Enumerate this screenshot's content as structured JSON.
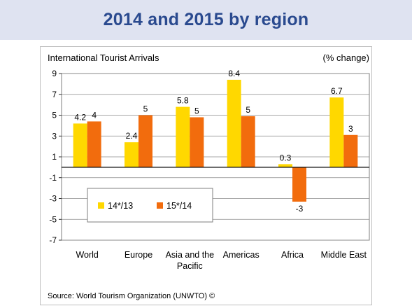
{
  "slide": {
    "title": "2014 and 2015 by region"
  },
  "chart_data": {
    "type": "bar",
    "title": "International Tourist Arrivals",
    "unit_note": "(% change)",
    "source": "Source: World Tourism Organization (UNWTO) ©",
    "categories": [
      "World",
      "Europe",
      "Asia and the Pacific",
      "Americas",
      "Africa",
      "Middle East"
    ],
    "category_lines": [
      [
        "World"
      ],
      [
        "Europe"
      ],
      [
        "Asia and the",
        "Pacific"
      ],
      [
        "Americas"
      ],
      [
        "Africa"
      ],
      [
        "Middle East"
      ]
    ],
    "series": [
      {
        "name": "14*/13",
        "color": "#ffd800",
        "values": [
          4.2,
          2.4,
          5.8,
          8.4,
          0.3,
          6.7
        ],
        "labels": [
          "4.2",
          "2.4",
          "5.8",
          "8.4",
          "0.3",
          "6.7"
        ]
      },
      {
        "name": "15*/14",
        "color": "#f26c0d",
        "values": [
          4.4,
          5.0,
          4.8,
          4.9,
          -3.3,
          3.1
        ],
        "labels": [
          "4",
          "5",
          "5",
          "5",
          "-3",
          "3"
        ]
      }
    ],
    "ylim": [
      -7,
      9
    ],
    "yticks": [
      9,
      7,
      5,
      3,
      1,
      -1,
      -3,
      -5,
      -7
    ],
    "grid": true,
    "legend_position": "lower-left"
  }
}
